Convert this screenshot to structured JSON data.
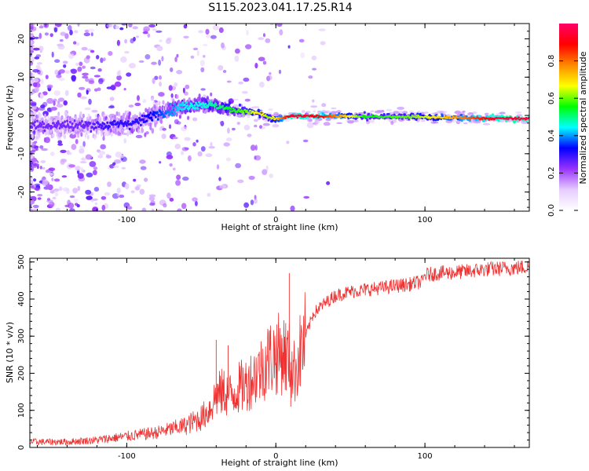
{
  "figure": {
    "title": "S115.2023.041.17.25.R14"
  },
  "chart_data": [
    {
      "type": "heatmap",
      "xlabel": "Height of straight line (km)",
      "ylabel": "Frequency (Hz)",
      "xlim": [
        -165,
        170
      ],
      "ylim": [
        -25,
        24
      ],
      "xticks": [
        -100,
        0,
        100
      ],
      "yticks": [
        -20,
        -10,
        0,
        10,
        20
      ],
      "colorbar": {
        "label": "Normalized spectral amplitude",
        "range": [
          0,
          1
        ],
        "ticks": [
          0.0,
          0.2,
          0.4,
          0.6,
          0.8
        ],
        "colormap": [
          "#ffffff",
          "#e6ccff",
          "#9933ff",
          "#0000ff",
          "#00ffff",
          "#00ff00",
          "#ffff00",
          "#ff8800",
          "#ff0000",
          "#ff0066"
        ]
      },
      "signal_track": {
        "x": [
          -130,
          -110,
          -90,
          -80,
          -70,
          -60,
          -50,
          -40,
          -30,
          -20,
          -10,
          -5,
          0,
          10,
          30,
          60,
          90,
          120,
          150,
          170
        ],
        "freq": [
          -2.5,
          -2.5,
          -1.5,
          0.5,
          1.5,
          2.5,
          3.0,
          2.5,
          1.5,
          1.0,
          0.5,
          -0.5,
          -1.0,
          -0.2,
          -0.2,
          -0.3,
          -0.3,
          -0.6,
          -0.8,
          -0.8
        ],
        "amplitude": [
          0.25,
          0.3,
          0.3,
          0.35,
          0.4,
          0.45,
          0.45,
          0.5,
          0.55,
          0.6,
          0.7,
          0.6,
          0.7,
          0.95,
          0.9,
          0.55,
          0.6,
          0.75,
          0.95,
          0.95
        ],
        "width": [
          3,
          3,
          3,
          3,
          3,
          2.5,
          2.5,
          2,
          1.5,
          1.2,
          1,
          1,
          1,
          0.8,
          0.8,
          0.8,
          0.8,
          0.8,
          0.8,
          0.8
        ]
      }
    },
    {
      "type": "line",
      "xlabel": "Height of straight line (km)",
      "ylabel": "SNR (10 * v/v)",
      "xlim": [
        -165,
        170
      ],
      "ylim": [
        0,
        510
      ],
      "xticks": [
        -100,
        0,
        100
      ],
      "yticks": [
        0,
        100,
        200,
        300,
        400,
        500
      ],
      "color": "#ee3333",
      "series": [
        {
          "x": [
            -165,
            -140,
            -120,
            -100,
            -80,
            -70,
            -60,
            -50,
            -45,
            -40,
            -35,
            -30,
            -25,
            -20,
            -15,
            -10,
            -5,
            0,
            5,
            10,
            12,
            20,
            25,
            30,
            40,
            50,
            60,
            70,
            80,
            90,
            95,
            98,
            100,
            110,
            120,
            130,
            140,
            150,
            160,
            170
          ],
          "values": [
            15,
            15,
            20,
            30,
            40,
            50,
            60,
            80,
            100,
            140,
            150,
            140,
            160,
            170,
            190,
            210,
            240,
            250,
            255,
            230,
            200,
            300,
            360,
            380,
            410,
            420,
            425,
            430,
            435,
            440,
            445,
            445,
            465,
            470,
            472,
            475,
            480,
            482,
            484,
            487
          ]
        }
      ],
      "spikes": [
        {
          "x": -40,
          "value": 290
        },
        {
          "x": -32,
          "value": 275
        },
        {
          "x": 9,
          "value": 470
        },
        {
          "x": 10,
          "value": 110
        }
      ]
    }
  ]
}
